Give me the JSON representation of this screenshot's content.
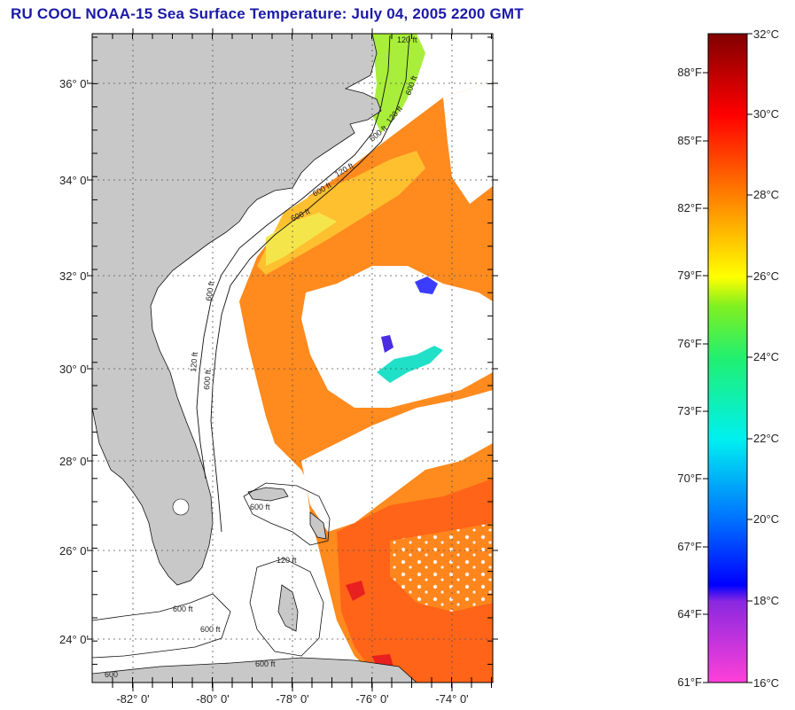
{
  "title": "RU COOL  NOAA-15  Sea Surface Temperature:  July 04, 2005 2200 GMT",
  "map": {
    "lat_labels": [
      "36° 0'",
      "34° 0'",
      "32° 0'",
      "30° 0'",
      "28° 0'",
      "26° 0'",
      "24° 0'"
    ],
    "lon_labels": [
      "-82° 0'",
      "-80° 0'",
      "-78° 0'",
      "-76° 0'",
      "-74° 0'"
    ],
    "isobath_labels": [
      "120 ft",
      "600 ft",
      "120 ft",
      "600 ft",
      "120 ft",
      "600 ft",
      "600 ft",
      "600 ft",
      "120 ft",
      "600 ft",
      "600 ft",
      "600 ft",
      "120 ft",
      "600 ft",
      "600 ft",
      "600"
    ],
    "colors": {
      "land": "#c8c8c8",
      "ocean_clear": "#ffffff",
      "sst_warm": "#ff8a1e",
      "sst_hot": "#ff5a10",
      "sst_mid": "#ffb830",
      "sst_cool": "#f4e64a",
      "sst_green": "#a8ee3a",
      "sst_cyan": "#20e0d0",
      "sst_blue": "#3c3cff",
      "sst_red": "#e82020"
    }
  },
  "colorbar": {
    "fahrenheit_labels": [
      "88°F",
      "85°F",
      "82°F",
      "79°F",
      "76°F",
      "73°F",
      "70°F",
      "67°F",
      "64°F",
      "61°F"
    ],
    "celsius_labels": [
      "32°C",
      "30°C",
      "28°C",
      "26°C",
      "24°C",
      "22°C",
      "20°C",
      "18°C",
      "16°C"
    ],
    "range_celsius": [
      16,
      32
    ]
  }
}
